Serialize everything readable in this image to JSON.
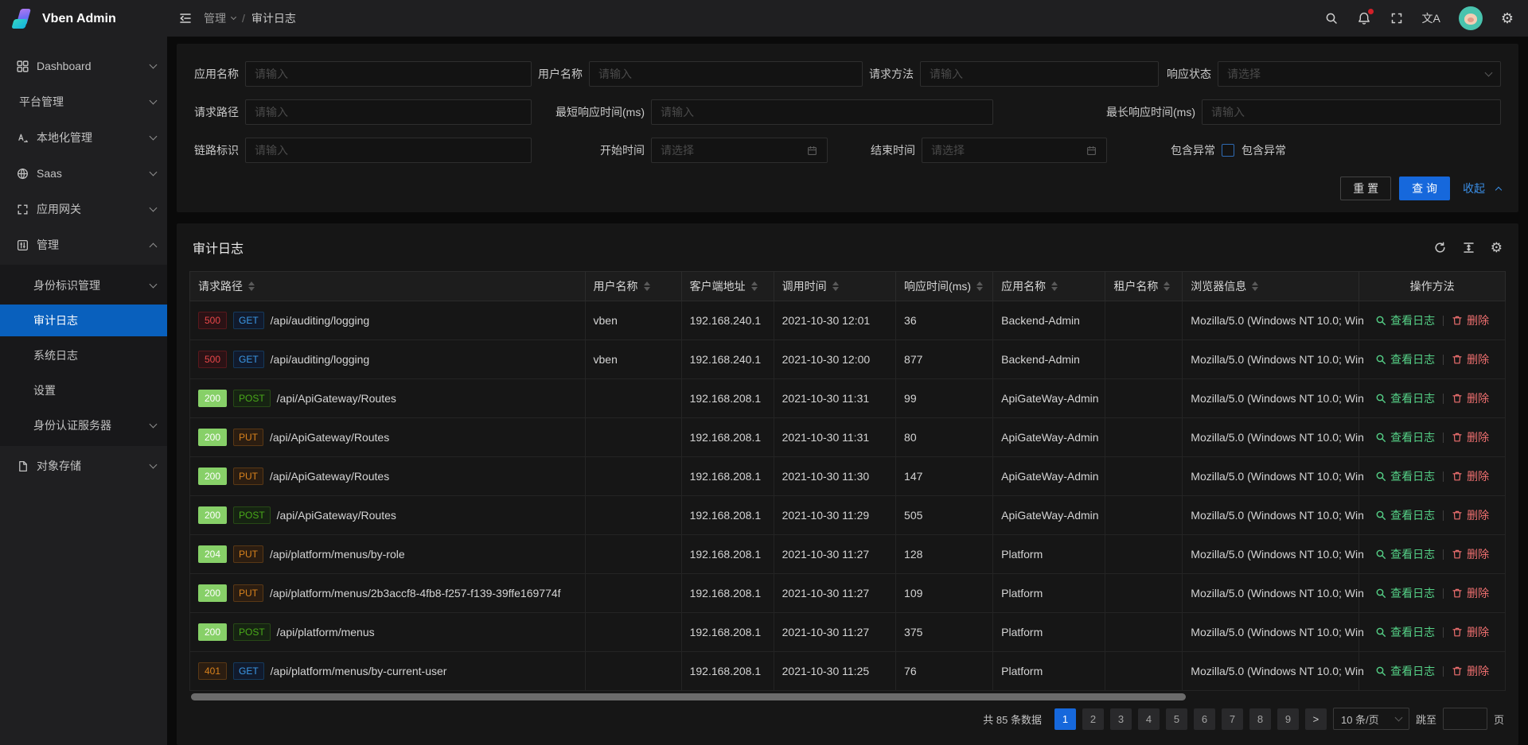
{
  "app": {
    "name": "Vben Admin"
  },
  "colors": {
    "primary": "#0960bd",
    "button_primary": "#1668dc",
    "badge_success_bg": "#87d068",
    "badge_error_text": "#e84749",
    "badge_warn_text": "#d8821d",
    "method_get_text": "#3c9ae8",
    "method_post_text": "#49aa19",
    "method_put_text": "#d8821d",
    "action_view_text": "#55d187",
    "action_delete_text": "#ed6f6f",
    "notification_dot": "#d32029",
    "avatar_bg": "#49c3ae"
  },
  "header": {
    "breadcrumb": [
      {
        "label": "管理",
        "dropdown": true
      },
      {
        "label": "审计日志"
      }
    ],
    "separator": "/",
    "icons": [
      "menu-fold-icon",
      "search-icon",
      "notification-bell-icon",
      "fullscreen-icon",
      "translate-icon",
      "avatar",
      "settings-gear-icon"
    ]
  },
  "sidebar": {
    "items": [
      {
        "label": "Dashboard",
        "icon": "dashboard-icon",
        "chevron": "down"
      },
      {
        "label": "平台管理",
        "icon": null,
        "chevron": "down"
      },
      {
        "label": "本地化管理",
        "icon": "locale-icon",
        "chevron": "down"
      },
      {
        "label": "Saas",
        "icon": "saas-icon",
        "chevron": "down"
      },
      {
        "label": "应用网关",
        "icon": "gateway-icon",
        "chevron": "down"
      },
      {
        "label": "管理",
        "icon": "management-icon",
        "chevron": "up",
        "children": [
          {
            "label": "身份标识管理",
            "chevron": "down"
          },
          {
            "label": "审计日志",
            "active": true
          },
          {
            "label": "系统日志"
          },
          {
            "label": "设置"
          },
          {
            "label": "身份认证服务器",
            "chevron": "down"
          }
        ]
      },
      {
        "label": "对象存储",
        "icon": "storage-icon",
        "chevron": "down"
      }
    ]
  },
  "filter": {
    "rows": [
      [
        {
          "label": "应用名称",
          "type": "input",
          "placeholder": "请输入"
        },
        {
          "label": "用户名称",
          "type": "input",
          "placeholder": "请输入"
        },
        {
          "label": "请求方法",
          "type": "input",
          "placeholder": "请输入"
        },
        {
          "label": "响应状态",
          "type": "select",
          "placeholder": "请选择"
        }
      ],
      [
        {
          "label": "请求路径",
          "type": "input",
          "placeholder": "请输入"
        },
        {
          "label": "最短响应时间(ms)",
          "type": "input",
          "placeholder": "请输入"
        },
        {
          "label": "最长响应时间(ms)",
          "type": "input",
          "placeholder": "请输入"
        }
      ],
      [
        {
          "label": "链路标识",
          "type": "input",
          "placeholder": "请输入"
        },
        {
          "label": "开始时间",
          "type": "date",
          "placeholder": "请选择"
        },
        {
          "label": "结束时间",
          "type": "date",
          "placeholder": "请选择"
        },
        {
          "label": "包含异常",
          "type": "checkbox",
          "checkbox_label": "包含异常",
          "checked": false
        }
      ]
    ],
    "buttons": {
      "reset": "重 置",
      "search": "查 询",
      "collapse": "收起"
    }
  },
  "table": {
    "title": "审计日志",
    "toolbar_icons": [
      "refresh-icon",
      "row-height-icon",
      "column-settings-icon"
    ],
    "columns": [
      {
        "label": "请求路径",
        "sortable": true
      },
      {
        "label": "用户名称",
        "sortable": true
      },
      {
        "label": "客户端地址",
        "sortable": true
      },
      {
        "label": "调用时间",
        "sortable": true
      },
      {
        "label": "响应时间(ms)",
        "sortable": true
      },
      {
        "label": "应用名称",
        "sortable": true
      },
      {
        "label": "租户名称",
        "sortable": true
      },
      {
        "label": "浏览器信息",
        "sortable": true
      },
      {
        "label": "操作方法",
        "sortable": false
      }
    ],
    "actions": {
      "view": "查看日志",
      "delete": "删除"
    },
    "rows": [
      {
        "status": "500",
        "status_type": "error",
        "method": "GET",
        "path": "/api/auditing/logging",
        "user": "vben",
        "client": "192.168.240.1",
        "time": "2021-10-30 12:01",
        "duration": "36",
        "app": "Backend-Admin",
        "tenant": "",
        "browser": "Mozilla/5.0 (Windows NT 10.0; Win"
      },
      {
        "status": "500",
        "status_type": "error",
        "method": "GET",
        "path": "/api/auditing/logging",
        "user": "vben",
        "client": "192.168.240.1",
        "time": "2021-10-30 12:00",
        "duration": "877",
        "app": "Backend-Admin",
        "tenant": "",
        "browser": "Mozilla/5.0 (Windows NT 10.0; Win"
      },
      {
        "status": "200",
        "status_type": "success",
        "method": "POST",
        "path": "/api/ApiGateway/Routes",
        "user": "",
        "client": "192.168.208.1",
        "time": "2021-10-30 11:31",
        "duration": "99",
        "app": "ApiGateWay-Admin",
        "tenant": "",
        "browser": "Mozilla/5.0 (Windows NT 10.0; Win"
      },
      {
        "status": "200",
        "status_type": "success",
        "method": "PUT",
        "path": "/api/ApiGateway/Routes",
        "user": "",
        "client": "192.168.208.1",
        "time": "2021-10-30 11:31",
        "duration": "80",
        "app": "ApiGateWay-Admin",
        "tenant": "",
        "browser": "Mozilla/5.0 (Windows NT 10.0; Win"
      },
      {
        "status": "200",
        "status_type": "success",
        "method": "PUT",
        "path": "/api/ApiGateway/Routes",
        "user": "",
        "client": "192.168.208.1",
        "time": "2021-10-30 11:30",
        "duration": "147",
        "app": "ApiGateWay-Admin",
        "tenant": "",
        "browser": "Mozilla/5.0 (Windows NT 10.0; Win"
      },
      {
        "status": "200",
        "status_type": "success",
        "method": "POST",
        "path": "/api/ApiGateway/Routes",
        "user": "",
        "client": "192.168.208.1",
        "time": "2021-10-30 11:29",
        "duration": "505",
        "app": "ApiGateWay-Admin",
        "tenant": "",
        "browser": "Mozilla/5.0 (Windows NT 10.0; Win"
      },
      {
        "status": "204",
        "status_type": "success",
        "method": "PUT",
        "path": "/api/platform/menus/by-role",
        "user": "",
        "client": "192.168.208.1",
        "time": "2021-10-30 11:27",
        "duration": "128",
        "app": "Platform",
        "tenant": "",
        "browser": "Mozilla/5.0 (Windows NT 10.0; Win"
      },
      {
        "status": "200",
        "status_type": "success",
        "method": "PUT",
        "path": "/api/platform/menus/2b3accf8-4fb8-f257-f139-39ffe169774f",
        "user": "",
        "client": "192.168.208.1",
        "time": "2021-10-30 11:27",
        "duration": "109",
        "app": "Platform",
        "tenant": "",
        "browser": "Mozilla/5.0 (Windows NT 10.0; Win"
      },
      {
        "status": "200",
        "status_type": "success",
        "method": "POST",
        "path": "/api/platform/menus",
        "user": "",
        "client": "192.168.208.1",
        "time": "2021-10-30 11:27",
        "duration": "375",
        "app": "Platform",
        "tenant": "",
        "browser": "Mozilla/5.0 (Windows NT 10.0; Win"
      },
      {
        "status": "401",
        "status_type": "warn",
        "method": "GET",
        "path": "/api/platform/menus/by-current-user",
        "user": "",
        "client": "192.168.208.1",
        "time": "2021-10-30 11:25",
        "duration": "76",
        "app": "Platform",
        "tenant": "",
        "browser": "Mozilla/5.0 (Windows NT 10.0; Win"
      }
    ]
  },
  "pagination": {
    "total_text": "共 85 条数据",
    "pages": [
      "1",
      "2",
      "3",
      "4",
      "5",
      "6",
      "7",
      "8",
      "9"
    ],
    "active_page": "1",
    "next_label": ">",
    "page_size_label": "10 条/页",
    "jump_prefix": "跳至",
    "jump_suffix": "页"
  }
}
